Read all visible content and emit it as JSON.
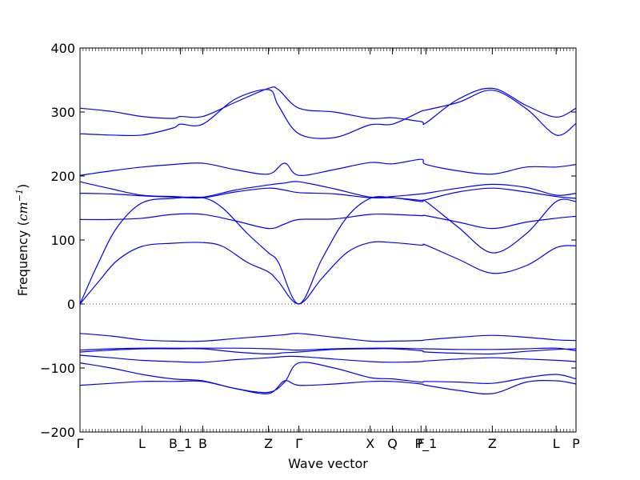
{
  "chart_data": {
    "type": "line",
    "title": "",
    "xlabel": "Wave vector",
    "ylabel_prefix": "Frequency (",
    "ylabel_unit_base": "cm",
    "ylabel_unit_exp": "−1",
    "ylabel_suffix": ")",
    "ylim": [
      -200,
      400
    ],
    "yticks": [
      -200,
      -100,
      0,
      100,
      200,
      300,
      400
    ],
    "xlim": [
      0,
      8
    ],
    "grid": false,
    "legend": "none",
    "line_color": "#0000ff",
    "zero_line_color": "#555555",
    "high_symmetry_points": [
      {
        "label": "Γ",
        "x": 0
      },
      {
        "label": "L",
        "x": 1
      },
      {
        "label": "B_1",
        "x": 1.62
      },
      {
        "label": "B",
        "x": 1.98
      },
      {
        "label": "Z",
        "x": 3.04
      },
      {
        "label": "Γ",
        "x": 3.53
      },
      {
        "label": "X",
        "x": 4.68
      },
      {
        "label": "Q",
        "x": 5.04
      },
      {
        "label": "F",
        "x": 5.5
      },
      {
        "label": "P_1",
        "x": 5.58
      },
      {
        "label": "Z",
        "x": 6.65
      },
      {
        "label": "L",
        "x": 7.68
      },
      {
        "label": "P",
        "x": 8
      }
    ],
    "series": [
      {
        "x": [
          0,
          0.5,
          1,
          1.5,
          1.98,
          2.5,
          3.04,
          3.3,
          3.53,
          4.1,
          4.68,
          5.04,
          5.5,
          5.58,
          6.1,
          6.65,
          7.2,
          7.68,
          8
        ],
        "y": [
          -127,
          -124,
          -121,
          -121,
          -121,
          -132,
          -140,
          -120,
          -127,
          -125,
          -121,
          -121,
          -125,
          -127,
          -135,
          -140,
          -122,
          -120,
          -125
        ]
      },
      {
        "x": [
          0,
          0.5,
          1,
          1.5,
          1.98,
          2.5,
          3.04,
          3.3,
          3.53,
          4.1,
          4.68,
          5.04,
          5.5,
          5.58,
          6.1,
          6.65,
          7.2,
          7.68,
          8
        ],
        "y": [
          -92,
          -100,
          -110,
          -117,
          -120,
          -132,
          -138,
          -122,
          -92,
          -100,
          -115,
          -117,
          -122,
          -121,
          -122,
          -124,
          -115,
          -110,
          -117
        ]
      },
      {
        "x": [
          0,
          0.5,
          1,
          1.5,
          1.98,
          2.5,
          3.04,
          3.3,
          3.53,
          4.1,
          4.68,
          5.04,
          5.5,
          5.58,
          6.1,
          6.65,
          7.2,
          7.68,
          8
        ],
        "y": [
          -80,
          -84,
          -88,
          -90,
          -91,
          -87,
          -84,
          -82,
          -82,
          -86,
          -90,
          -91,
          -90,
          -89,
          -86,
          -84,
          -86,
          -88,
          -90
        ]
      },
      {
        "x": [
          0,
          0.5,
          1,
          1.5,
          1.98,
          2.5,
          3.04,
          3.3,
          3.53,
          4.1,
          4.68,
          5.04,
          5.5,
          5.58,
          6.1,
          6.65,
          7.2,
          7.68,
          8
        ],
        "y": [
          -75,
          -72,
          -70,
          -70,
          -70,
          -75,
          -78,
          -76,
          -75,
          -71,
          -70,
          -70,
          -73,
          -75,
          -77,
          -78,
          -74,
          -71,
          -70
        ]
      },
      {
        "x": [
          0,
          0.5,
          1,
          1.5,
          1.98,
          2.5,
          3.04,
          3.3,
          3.53,
          4.1,
          4.68,
          5.04,
          5.5,
          5.58,
          6.1,
          6.65,
          7.2,
          7.68,
          8
        ],
        "y": [
          -72,
          -70,
          -69,
          -69,
          -69,
          -69,
          -70,
          -71,
          -72,
          -70,
          -69,
          -69,
          -70,
          -70,
          -71,
          -71,
          -70,
          -69,
          -73
        ]
      },
      {
        "x": [
          0,
          0.5,
          1,
          1.5,
          1.98,
          2.5,
          3.04,
          3.3,
          3.53,
          4.1,
          4.68,
          5.04,
          5.5,
          5.58,
          6.1,
          6.65,
          7.2,
          7.68,
          8
        ],
        "y": [
          -46,
          -50,
          -56,
          -58,
          -58,
          -54,
          -50,
          -48,
          -46,
          -52,
          -58,
          -58,
          -57,
          -56,
          -52,
          -49,
          -52,
          -56,
          -57
        ]
      },
      {
        "x": [
          0,
          0.3,
          0.6,
          1,
          1.5,
          1.98,
          2.3,
          2.7,
          3.04,
          3.2,
          3.53,
          3.9,
          4.3,
          4.68,
          5.04,
          5.5,
          5.58,
          6.1,
          6.65,
          7.2,
          7.68,
          8
        ],
        "y": [
          0,
          35,
          68,
          90,
          95,
          96,
          90,
          65,
          50,
          35,
          0,
          40,
          80,
          96,
          96,
          92,
          92,
          70,
          48,
          60,
          88,
          91
        ]
      },
      {
        "x": [
          0,
          0.3,
          0.6,
          1,
          1.5,
          1.98,
          2.3,
          2.7,
          3.04,
          3.2,
          3.53,
          3.9,
          4.3,
          4.68,
          5.04,
          5.5,
          5.58,
          6.1,
          6.65,
          7.2,
          7.68,
          8
        ],
        "y": [
          0,
          65,
          120,
          158,
          165,
          166,
          150,
          110,
          80,
          65,
          0,
          70,
          135,
          165,
          166,
          160,
          160,
          120,
          80,
          110,
          160,
          160
        ]
      },
      {
        "x": [
          0,
          0.5,
          1,
          1.5,
          1.98,
          2.5,
          3.04,
          3.3,
          3.53,
          4.1,
          4.68,
          5.04,
          5.5,
          5.58,
          6.1,
          6.65,
          7.2,
          7.68,
          8
        ],
        "y": [
          132,
          132,
          134,
          140,
          140,
          130,
          118,
          125,
          132,
          133,
          140,
          140,
          138,
          138,
          128,
          118,
          128,
          134,
          137
        ]
      },
      {
        "x": [
          0,
          0.5,
          1,
          1.5,
          1.98,
          2.5,
          3.04,
          3.3,
          3.53,
          4.1,
          4.68,
          5.04,
          5.5,
          5.58,
          6.1,
          6.65,
          7.2,
          7.68,
          8
        ],
        "y": [
          173,
          172,
          169,
          167,
          166,
          175,
          181,
          178,
          174,
          172,
          166,
          166,
          162,
          163,
          175,
          181,
          175,
          168,
          165
        ]
      },
      {
        "x": [
          0,
          0.5,
          1,
          1.5,
          1.98,
          2.5,
          3.04,
          3.3,
          3.53,
          4.1,
          4.68,
          5.04,
          5.5,
          5.58,
          6.1,
          6.65,
          7.2,
          7.68,
          8
        ],
        "y": [
          191,
          180,
          170,
          168,
          167,
          178,
          186,
          189,
          191,
          180,
          167,
          168,
          172,
          173,
          181,
          187,
          182,
          170,
          173
        ]
      },
      {
        "x": [
          0,
          0.5,
          1,
          1.5,
          1.98,
          2.5,
          3.04,
          3.3,
          3.53,
          4.1,
          4.68,
          5.04,
          5.5,
          5.58,
          6.1,
          6.65,
          7.2,
          7.68,
          8
        ],
        "y": [
          201,
          208,
          214,
          218,
          220,
          210,
          203,
          220,
          201,
          210,
          221,
          219,
          226,
          218,
          208,
          203,
          214,
          214,
          218
        ]
      },
      {
        "x": [
          0,
          0.5,
          1,
          1.5,
          1.62,
          1.98,
          2.5,
          3.04,
          3.2,
          3.53,
          4.1,
          4.68,
          5.04,
          5.5,
          5.58,
          6.1,
          6.65,
          7.2,
          7.68,
          8
        ],
        "y": [
          266,
          264,
          264,
          275,
          281,
          281,
          320,
          335,
          310,
          266,
          260,
          280,
          281,
          301,
          303,
          315,
          334,
          305,
          264,
          282
        ]
      },
      {
        "x": [
          0,
          0.5,
          1,
          1.5,
          1.62,
          1.98,
          2.5,
          3.04,
          3.2,
          3.53,
          4.1,
          4.68,
          5.04,
          5.5,
          5.58,
          6.1,
          6.65,
          7.2,
          7.68,
          8
        ],
        "y": [
          306,
          301,
          293,
          290,
          293,
          293,
          315,
          337,
          335,
          306,
          300,
          290,
          291,
          285,
          283,
          320,
          337,
          310,
          292,
          306
        ]
      }
    ]
  }
}
